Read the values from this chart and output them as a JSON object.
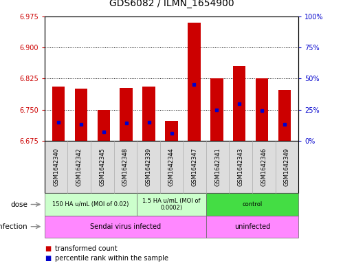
{
  "title": "GDS6082 / ILMN_1654900",
  "samples": [
    "GSM1642340",
    "GSM1642342",
    "GSM1642345",
    "GSM1642348",
    "GSM1642339",
    "GSM1642344",
    "GSM1642347",
    "GSM1642341",
    "GSM1642343",
    "GSM1642346",
    "GSM1642349"
  ],
  "bar_tops": [
    6.805,
    6.8,
    6.75,
    6.803,
    6.806,
    6.722,
    6.96,
    6.825,
    6.855,
    6.826,
    6.797
  ],
  "bar_bottom": 6.675,
  "percentile_ranks": [
    15,
    13,
    7,
    14,
    15,
    6,
    45,
    25,
    30,
    24,
    13
  ],
  "ylim_left": [
    6.675,
    6.975
  ],
  "ylim_right": [
    0,
    100
  ],
  "yticks_left": [
    6.675,
    6.75,
    6.825,
    6.9,
    6.975
  ],
  "yticks_right": [
    0,
    25,
    50,
    75,
    100
  ],
  "ytick_labels_right": [
    "0%",
    "25%",
    "50%",
    "75%",
    "100%"
  ],
  "bar_color": "#cc0000",
  "dot_color": "#0000cc",
  "dose_groups": [
    {
      "label": "150 HA u/mL (MOI of 0.02)",
      "start": 0,
      "end": 3,
      "color": "#ccffcc"
    },
    {
      "label": "1.5 HA u/mL (MOI of\n0.0002)",
      "start": 4,
      "end": 6,
      "color": "#ccffcc"
    },
    {
      "label": "control",
      "start": 7,
      "end": 10,
      "color": "#44dd44"
    }
  ],
  "infection_groups": [
    {
      "label": "Sendai virus infected",
      "start": 0,
      "end": 6,
      "color": "#ff88ff"
    },
    {
      "label": "uninfected",
      "start": 7,
      "end": 10,
      "color": "#ff88ff"
    }
  ],
  "sample_box_color": "#dddddd",
  "bg_color": "#ffffff",
  "left_tick_color": "#cc0000",
  "right_tick_color": "#0000cc",
  "title_fontsize": 10,
  "grid_yticks": [
    6.75,
    6.825,
    6.9
  ],
  "dose_row_label": "dose",
  "infection_row_label": "infection"
}
